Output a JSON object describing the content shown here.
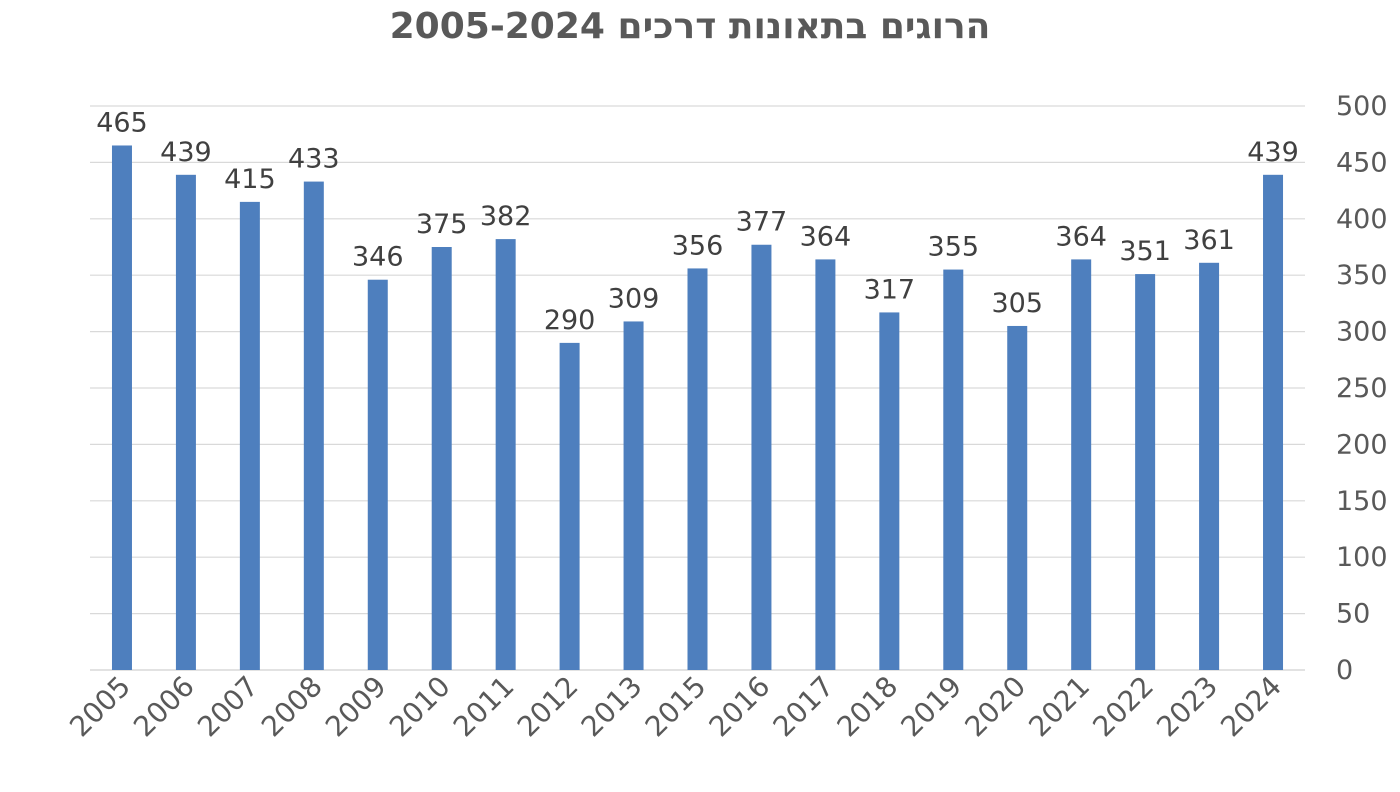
{
  "chart_data": {
    "type": "bar",
    "title": "הרוגים בתאונות דרכים 2005-2024",
    "xlabel": "",
    "ylabel": "",
    "categories": [
      "2005",
      "2006",
      "2007",
      "2008",
      "2009",
      "2010",
      "2011",
      "2012",
      "2013",
      "2015",
      "2016",
      "2017",
      "2018",
      "2019",
      "2020",
      "2021",
      "2022",
      "2023",
      "2024"
    ],
    "series": [
      {
        "values": [
          465,
          439,
          415,
          433,
          346,
          375,
          382,
          290,
          309,
          356,
          377,
          364,
          317,
          355,
          305,
          364,
          351,
          361,
          439
        ]
      }
    ],
    "ylim": [
      0,
      500
    ],
    "yticks": [
      0,
      50,
      100,
      150,
      200,
      250,
      300,
      350,
      400,
      450,
      500
    ],
    "y_axis_side": "right",
    "grid": true,
    "data_labels": true,
    "legend": "none",
    "bar_color": "#4e7fbe",
    "grid_color": "#d9d9d9"
  }
}
